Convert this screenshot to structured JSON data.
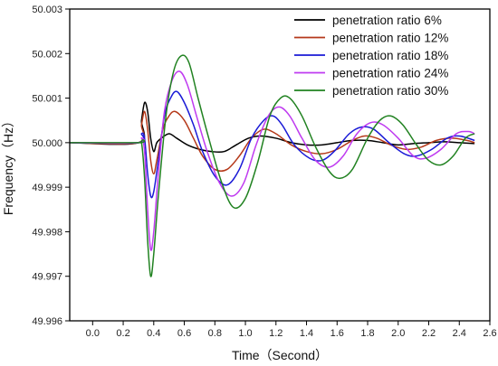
{
  "chart_data": {
    "type": "line",
    "xlabel": "Time（Second）",
    "ylabel": "Frequency（Hz）",
    "xlim": [
      -0.15,
      2.6
    ],
    "ylim": [
      49.996,
      50.003
    ],
    "x_ticks": [
      0.0,
      0.2,
      0.4,
      0.6,
      0.8,
      1.0,
      1.2,
      1.4,
      1.6,
      1.8,
      2.0,
      2.2,
      2.4,
      2.6
    ],
    "x_tick_labels": [
      "0.0",
      "0.2",
      "0.4",
      "0.6",
      "0.8",
      "1.0",
      "1.2",
      "1.4",
      "1.6",
      "1.8",
      "2.0",
      "2.2",
      "2.4",
      "2.6"
    ],
    "y_ticks": [
      49.996,
      49.997,
      49.998,
      49.999,
      50.0,
      50.001,
      50.002,
      50.003
    ],
    "y_tick_labels": [
      "49.996",
      "49.997",
      "49.998",
      "49.999",
      "50.000",
      "50.001",
      "50.002",
      "50.003"
    ],
    "grid": false,
    "legend_position": "top-right",
    "series": [
      {
        "name": "penetration ratio 6%",
        "color": "#000000",
        "points": [
          [
            -0.15,
            50.0
          ],
          [
            0.3,
            50.0
          ],
          [
            0.32,
            50.0005
          ],
          [
            0.34,
            50.0009
          ],
          [
            0.36,
            50.0007
          ],
          [
            0.38,
            50.0001
          ],
          [
            0.4,
            49.9998
          ],
          [
            0.42,
            50.0
          ],
          [
            0.45,
            50.0001
          ],
          [
            0.5,
            50.0002
          ],
          [
            0.55,
            50.0001
          ],
          [
            0.62,
            49.99995
          ],
          [
            0.7,
            49.99985
          ],
          [
            0.78,
            49.9998
          ],
          [
            0.86,
            49.9998
          ],
          [
            0.94,
            49.99995
          ],
          [
            1.02,
            50.0001
          ],
          [
            1.1,
            50.00015
          ],
          [
            1.2,
            50.0001
          ],
          [
            1.3,
            50.0
          ],
          [
            1.4,
            49.99995
          ],
          [
            1.5,
            49.99995
          ],
          [
            1.6,
            50.0
          ],
          [
            1.7,
            50.00005
          ],
          [
            1.8,
            50.00005
          ],
          [
            1.9,
            50.0
          ],
          [
            2.0,
            49.99995
          ],
          [
            2.1,
            49.99998
          ],
          [
            2.2,
            50.0
          ],
          [
            2.3,
            50.00002
          ],
          [
            2.4,
            50.0
          ],
          [
            2.5,
            49.99998
          ]
        ]
      },
      {
        "name": "penetration ratio 12%",
        "color": "#b5391a",
        "points": [
          [
            -0.15,
            50.0
          ],
          [
            0.3,
            50.0
          ],
          [
            0.32,
            50.0004
          ],
          [
            0.34,
            50.0007
          ],
          [
            0.36,
            50.0003
          ],
          [
            0.38,
            49.9996
          ],
          [
            0.4,
            49.9993
          ],
          [
            0.42,
            49.9996
          ],
          [
            0.46,
            50.0003
          ],
          [
            0.5,
            50.0006
          ],
          [
            0.54,
            50.0007
          ],
          [
            0.6,
            50.0005
          ],
          [
            0.66,
            50.0001
          ],
          [
            0.72,
            49.9997
          ],
          [
            0.8,
            49.9994
          ],
          [
            0.88,
            49.9994
          ],
          [
            0.96,
            49.9997
          ],
          [
            1.04,
            50.0001
          ],
          [
            1.12,
            50.0003
          ],
          [
            1.2,
            50.0002
          ],
          [
            1.3,
            49.99995
          ],
          [
            1.4,
            49.9998
          ],
          [
            1.5,
            49.99975
          ],
          [
            1.6,
            49.99985
          ],
          [
            1.7,
            50.00005
          ],
          [
            1.78,
            50.00015
          ],
          [
            1.86,
            50.0001
          ],
          [
            1.95,
            49.99995
          ],
          [
            2.05,
            49.99985
          ],
          [
            2.15,
            49.9999
          ],
          [
            2.25,
            50.00005
          ],
          [
            2.35,
            50.0001
          ],
          [
            2.45,
            50.00005
          ],
          [
            2.5,
            50.0
          ]
        ]
      },
      {
        "name": "penetration ratio 18%",
        "color": "#1a1ad6",
        "points": [
          [
            -0.15,
            50.0
          ],
          [
            0.3,
            50.0
          ],
          [
            0.32,
            50.0002
          ],
          [
            0.34,
            50.0001
          ],
          [
            0.36,
            49.9993
          ],
          [
            0.38,
            49.9988
          ],
          [
            0.4,
            49.9989
          ],
          [
            0.43,
            49.9996
          ],
          [
            0.47,
            50.0006
          ],
          [
            0.51,
            50.001
          ],
          [
            0.55,
            50.00115
          ],
          [
            0.6,
            50.0009
          ],
          [
            0.66,
            50.0004
          ],
          [
            0.72,
            49.9998
          ],
          [
            0.8,
            49.99925
          ],
          [
            0.88,
            49.99905
          ],
          [
            0.96,
            49.9994
          ],
          [
            1.04,
            50.0001
          ],
          [
            1.12,
            50.0005
          ],
          [
            1.18,
            50.0006
          ],
          [
            1.24,
            50.0004
          ],
          [
            1.32,
            49.99995
          ],
          [
            1.42,
            49.99965
          ],
          [
            1.5,
            49.9996
          ],
          [
            1.58,
            49.9998
          ],
          [
            1.68,
            50.0002
          ],
          [
            1.76,
            50.00035
          ],
          [
            1.84,
            50.0003
          ],
          [
            1.94,
            50.0
          ],
          [
            2.04,
            49.99975
          ],
          [
            2.12,
            49.9997
          ],
          [
            2.22,
            49.99985
          ],
          [
            2.32,
            50.0001
          ],
          [
            2.4,
            50.00015
          ],
          [
            2.5,
            50.00005
          ]
        ]
      },
      {
        "name": "penetration ratio 24%",
        "color": "#bf3af0",
        "points": [
          [
            -0.15,
            50.0
          ],
          [
            0.3,
            50.0
          ],
          [
            0.32,
            50.0001
          ],
          [
            0.34,
            49.9998
          ],
          [
            0.36,
            49.9985
          ],
          [
            0.38,
            49.9976
          ],
          [
            0.4,
            49.998
          ],
          [
            0.43,
            49.9993
          ],
          [
            0.47,
            50.0007
          ],
          [
            0.52,
            50.0014
          ],
          [
            0.57,
            50.0016
          ],
          [
            0.62,
            50.0013
          ],
          [
            0.68,
            50.0006
          ],
          [
            0.75,
            49.9998
          ],
          [
            0.83,
            49.9991
          ],
          [
            0.91,
            49.9988
          ],
          [
            0.99,
            49.9991
          ],
          [
            1.07,
            49.99995
          ],
          [
            1.15,
            50.0006
          ],
          [
            1.22,
            50.0008
          ],
          [
            1.29,
            50.0006
          ],
          [
            1.37,
            50.0001
          ],
          [
            1.46,
            49.9996
          ],
          [
            1.55,
            49.99945
          ],
          [
            1.64,
            49.9997
          ],
          [
            1.73,
            50.0002
          ],
          [
            1.82,
            50.00045
          ],
          [
            1.9,
            50.0004
          ],
          [
            2.0,
            50.0001
          ],
          [
            2.1,
            49.9997
          ],
          [
            2.18,
            49.99965
          ],
          [
            2.28,
            49.99985
          ],
          [
            2.38,
            50.0002
          ],
          [
            2.46,
            50.00025
          ],
          [
            2.5,
            50.0002
          ]
        ]
      },
      {
        "name": "penetration ratio 30%",
        "color": "#218221",
        "points": [
          [
            -0.15,
            50.0
          ],
          [
            0.3,
            50.0
          ],
          [
            0.32,
            50.0
          ],
          [
            0.34,
            49.9992
          ],
          [
            0.36,
            49.9978
          ],
          [
            0.38,
            49.997
          ],
          [
            0.4,
            49.9975
          ],
          [
            0.43,
            49.9988
          ],
          [
            0.48,
            50.0006
          ],
          [
            0.53,
            50.0016
          ],
          [
            0.58,
            50.00195
          ],
          [
            0.63,
            50.0018
          ],
          [
            0.69,
            50.001
          ],
          [
            0.76,
            50.0001
          ],
          [
            0.84,
            49.99915
          ],
          [
            0.92,
            49.99855
          ],
          [
            1.0,
            49.99875
          ],
          [
            1.08,
            49.99955
          ],
          [
            1.16,
            50.0006
          ],
          [
            1.23,
            50.001
          ],
          [
            1.29,
            50.001
          ],
          [
            1.37,
            50.0006
          ],
          [
            1.46,
            49.9999
          ],
          [
            1.55,
            49.99935
          ],
          [
            1.62,
            49.9992
          ],
          [
            1.7,
            49.9994
          ],
          [
            1.8,
            50.0001
          ],
          [
            1.88,
            50.0005
          ],
          [
            1.95,
            50.0006
          ],
          [
            2.03,
            50.0004
          ],
          [
            2.12,
            49.99995
          ],
          [
            2.2,
            49.9996
          ],
          [
            2.28,
            49.9995
          ],
          [
            2.36,
            49.9997
          ],
          [
            2.44,
            50.0001
          ],
          [
            2.5,
            50.0002
          ]
        ]
      }
    ]
  }
}
